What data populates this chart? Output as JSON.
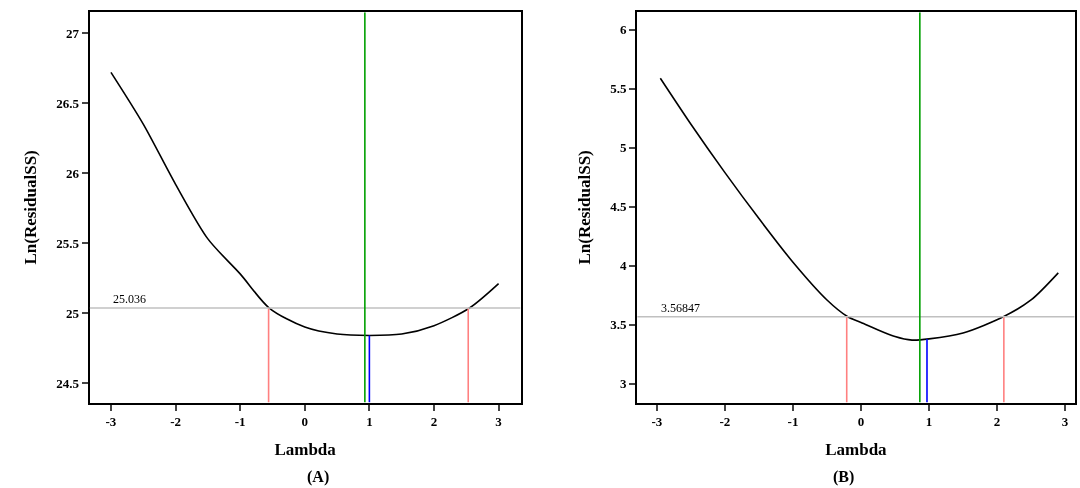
{
  "chart_data": [
    {
      "type": "line",
      "xlabel": "Lambda",
      "ylabel": "Ln(ResidualSS)",
      "annotations": [
        "(A)"
      ],
      "xlim": [
        -3.33,
        3.34
      ],
      "ylim": [
        24.36,
        27.15
      ],
      "xticks": [
        -3,
        -2,
        -1,
        0,
        1,
        2,
        3
      ],
      "yticks": [
        24.5,
        25,
        25.5,
        26,
        26.5,
        27
      ],
      "marker": "none",
      "series": [
        {
          "color": "#000000",
          "x": [
            -3,
            -2.5,
            -2,
            -1.5,
            -1,
            -0.55,
            0,
            0.5,
            1,
            1.5,
            2,
            2.55,
            3
          ],
          "values": [
            26.72,
            26.35,
            25.92,
            25.53,
            25.28,
            25.036,
            24.9,
            24.85,
            24.84,
            24.85,
            24.91,
            25.036,
            25.21
          ]
        },
        {
          "color": "#ff8080",
          "x": [
            -0.56,
            -0.56
          ],
          "values": [
            24.36,
            25.036
          ]
        },
        {
          "color": "#ff8080",
          "x": [
            2.53,
            2.53
          ],
          "values": [
            24.36,
            25.036
          ]
        },
        {
          "color": "#0000ff",
          "x": [
            1,
            1
          ],
          "values": [
            24.36,
            24.84
          ]
        }
      ],
      "ref_lines": [
        {
          "axis": "y",
          "value": 25.036,
          "label": "25.036",
          "color": "#c0c0c0"
        },
        {
          "axis": "x",
          "value": 0.93,
          "color": "#00a000"
        }
      ]
    },
    {
      "type": "line",
      "xlabel": "Lambda",
      "ylabel": "Ln(ResidualSS)",
      "annotations": [
        "(B)"
      ],
      "xlim": [
        -3.29,
        3.14
      ],
      "ylim": [
        2.84,
        6.15
      ],
      "xticks": [
        -3,
        -2,
        -1,
        0,
        1,
        2,
        3
      ],
      "yticks": [
        3,
        3.5,
        4,
        4.5,
        5,
        5.5,
        6
      ],
      "marker": "none",
      "series": [
        {
          "color": "#000000",
          "x": [
            -2.95,
            -2.5,
            -2,
            -1.5,
            -1,
            -0.5,
            -0.2,
            0,
            0.5,
            0.75,
            1,
            1.5,
            2.1,
            2.5,
            2.9
          ],
          "values": [
            5.59,
            5.2,
            4.79,
            4.4,
            4.03,
            3.71,
            3.57,
            3.52,
            3.4,
            3.37,
            3.38,
            3.43,
            3.57,
            3.71,
            3.94
          ]
        },
        {
          "color": "#ff8080",
          "x": [
            -0.21,
            -0.21
          ],
          "values": [
            2.84,
            3.57
          ]
        },
        {
          "color": "#ff8080",
          "x": [
            2.1,
            2.1
          ],
          "values": [
            2.84,
            3.57
          ]
        },
        {
          "color": "#0000ff",
          "x": [
            0.97,
            0.97
          ],
          "values": [
            2.84,
            3.38
          ]
        }
      ],
      "ref_lines": [
        {
          "axis": "y",
          "value": 3.56847,
          "label": "3.56847",
          "color": "#c0c0c0"
        },
        {
          "axis": "x",
          "value": 0.865,
          "color": "#00a000"
        }
      ]
    }
  ]
}
